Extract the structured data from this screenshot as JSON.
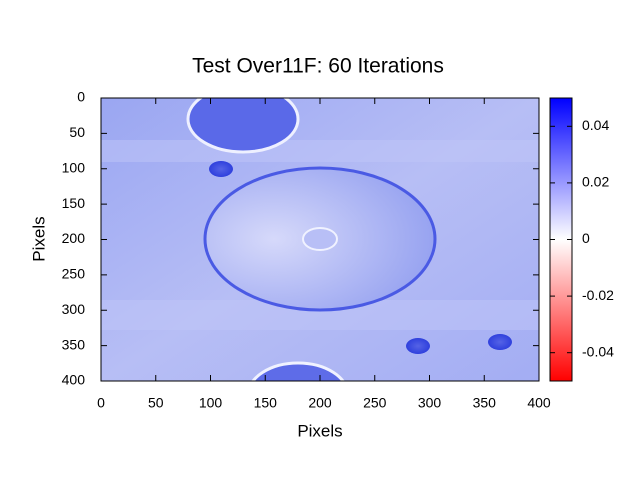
{
  "chart_data": {
    "type": "heatmap",
    "title": "Test Over11F: 60 Iterations",
    "xlabel": "Pixels",
    "ylabel": "Pixels",
    "xlim": [
      0,
      400
    ],
    "xticks": [
      0,
      50,
      100,
      150,
      200,
      250,
      300,
      350,
      400
    ],
    "ylim": [
      400,
      0
    ],
    "yticks": [
      0,
      50,
      100,
      150,
      200,
      250,
      300,
      350,
      400
    ],
    "colorbar": {
      "lim": [
        -0.05,
        0.05
      ],
      "ticks": [
        -0.04,
        -0.02,
        0,
        0.02,
        0.04
      ],
      "colors": [
        "#ff0000",
        "#ffffff",
        "#0000ff"
      ]
    }
  }
}
